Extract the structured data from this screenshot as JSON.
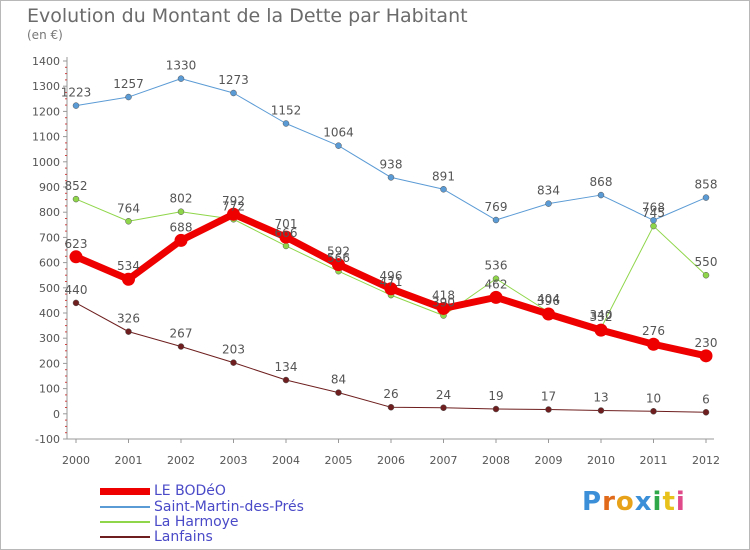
{
  "title": "Evolution du Montant de la Dette par Habitant",
  "unit": "(en €)",
  "brand": {
    "text": "Proxiti",
    "colors": [
      "#3a8fd8",
      "#e06a1a",
      "#e8a21a",
      "#3a8fd8",
      "#2fa84a",
      "#e8c21a",
      "#e04a8a"
    ]
  },
  "chart_data": {
    "type": "line",
    "title": "Evolution du Montant de la Dette par Habitant",
    "ylabel": "(en €)",
    "xlabel": "",
    "ylim": [
      -100,
      1400
    ],
    "yticks": [
      -100,
      0,
      100,
      200,
      300,
      400,
      500,
      600,
      700,
      800,
      900,
      1000,
      1100,
      1200,
      1300,
      1400
    ],
    "categories": [
      "2000",
      "2001",
      "2002",
      "2003",
      "2004",
      "2005",
      "2006",
      "2007",
      "2008",
      "2009",
      "2010",
      "2011",
      "2012"
    ],
    "grid": false,
    "legend_position": "bottom-left",
    "series": [
      {
        "name": "Saint-Martin-des-Prés",
        "color": "#5b9bd5",
        "values": [
          1223,
          1257,
          1330,
          1273,
          1152,
          1064,
          938,
          891,
          769,
          834,
          868,
          768,
          858
        ]
      },
      {
        "name": "La Harmoye",
        "color": "#8fd64a",
        "values": [
          852,
          764,
          802,
          772,
          666,
          566,
          471,
          390,
          536,
          404,
          340,
          745,
          550
        ]
      },
      {
        "name": "Lanfains",
        "color": "#6e1e1e",
        "values": [
          440,
          326,
          267,
          203,
          134,
          84,
          26,
          24,
          19,
          17,
          13,
          10,
          6
        ]
      },
      {
        "name": "LE BODéO",
        "color": "#ee0000",
        "values": [
          623,
          534,
          688,
          792,
          701,
          592,
          496,
          418,
          462,
          396,
          332,
          276,
          230
        ]
      }
    ]
  }
}
